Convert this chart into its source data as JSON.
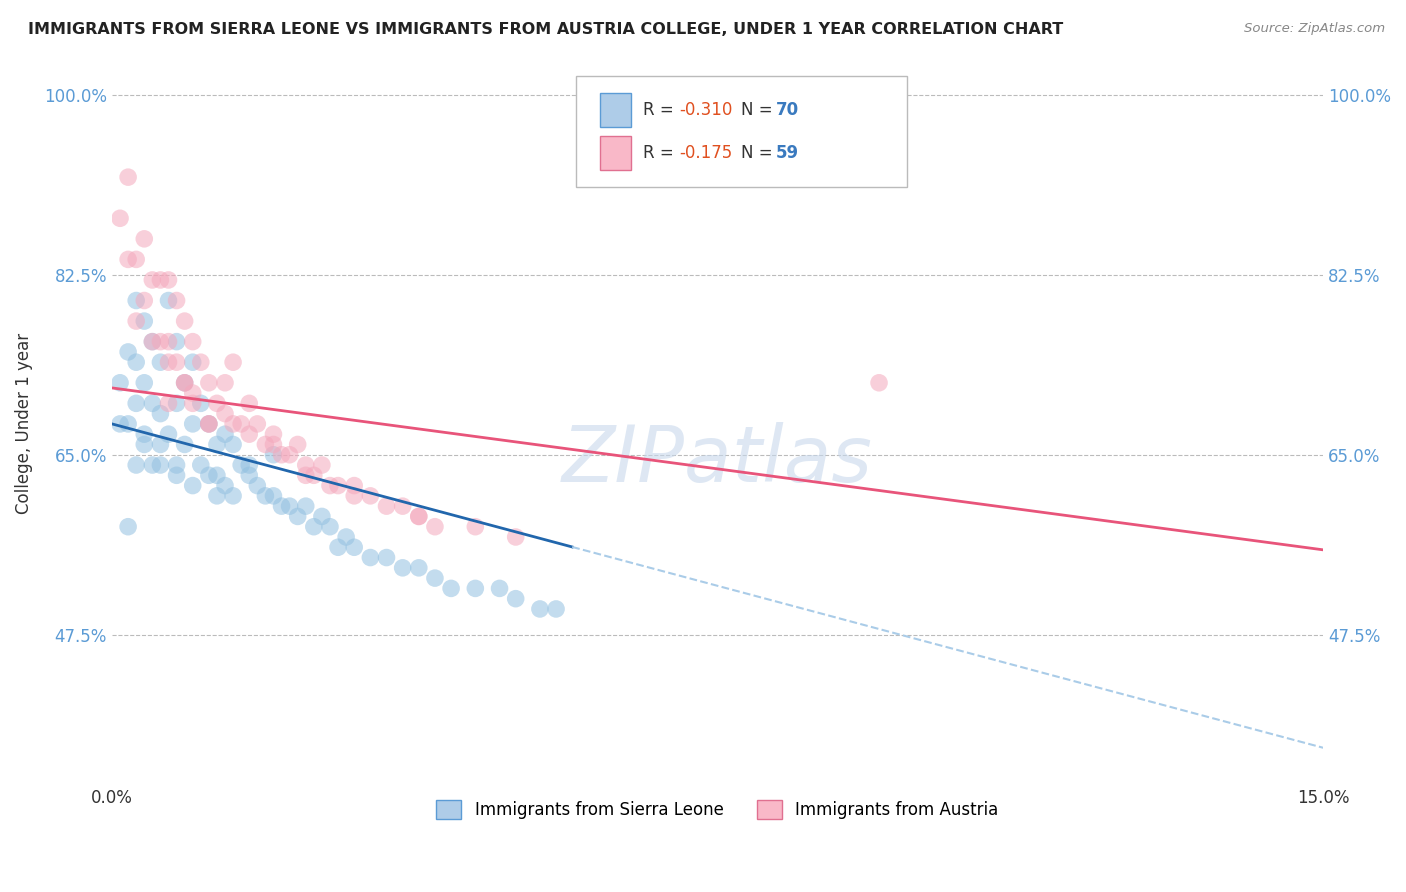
{
  "title": "IMMIGRANTS FROM SIERRA LEONE VS IMMIGRANTS FROM AUSTRIA COLLEGE, UNDER 1 YEAR CORRELATION CHART",
  "source": "Source: ZipAtlas.com",
  "ylabel": "College, Under 1 year",
  "xlim": [
    0.0,
    0.15
  ],
  "ylim": [
    0.33,
    1.03
  ],
  "xticks": [
    0.0,
    0.15
  ],
  "xtick_labels": [
    "0.0%",
    "15.0%"
  ],
  "yticks": [
    0.475,
    0.65,
    0.825,
    1.0
  ],
  "ytick_labels": [
    "47.5%",
    "65.0%",
    "82.5%",
    "100.0%"
  ],
  "series1_label": "Immigrants from Sierra Leone",
  "series1_color": "#92c0e0",
  "series2_label": "Immigrants from Austria",
  "series2_color": "#f4a8bc",
  "watermark": "ZIPatlas",
  "background_color": "#ffffff",
  "scatter_alpha": 0.55,
  "scatter_size": 160,
  "grid_color": "#bbbbbb",
  "line1_color": "#2166ac",
  "line2_color": "#e8547a",
  "line1_dash_color": "#aacce8",
  "line1_x0": 0.0,
  "line1_y0": 0.68,
  "line1_slope": -2.1,
  "line1_solid_end": 0.057,
  "line2_x0": 0.0,
  "line2_y0": 0.715,
  "line2_slope": -1.05,
  "line2_solid_end": 0.15,
  "series1_x": [
    0.001,
    0.001,
    0.002,
    0.002,
    0.003,
    0.003,
    0.003,
    0.003,
    0.004,
    0.004,
    0.004,
    0.005,
    0.005,
    0.005,
    0.006,
    0.006,
    0.006,
    0.007,
    0.007,
    0.008,
    0.008,
    0.008,
    0.009,
    0.009,
    0.01,
    0.01,
    0.01,
    0.011,
    0.011,
    0.012,
    0.012,
    0.013,
    0.013,
    0.014,
    0.014,
    0.015,
    0.015,
    0.016,
    0.017,
    0.018,
    0.019,
    0.02,
    0.021,
    0.022,
    0.023,
    0.024,
    0.025,
    0.026,
    0.027,
    0.028,
    0.029,
    0.03,
    0.032,
    0.034,
    0.036,
    0.038,
    0.04,
    0.042,
    0.045,
    0.048,
    0.05,
    0.053,
    0.055,
    0.02,
    0.017,
    0.013,
    0.008,
    0.006,
    0.004,
    0.002
  ],
  "series1_y": [
    0.72,
    0.68,
    0.75,
    0.68,
    0.8,
    0.74,
    0.7,
    0.64,
    0.78,
    0.72,
    0.66,
    0.76,
    0.7,
    0.64,
    0.74,
    0.69,
    0.64,
    0.8,
    0.67,
    0.76,
    0.7,
    0.64,
    0.72,
    0.66,
    0.74,
    0.68,
    0.62,
    0.7,
    0.64,
    0.68,
    0.63,
    0.66,
    0.61,
    0.67,
    0.62,
    0.66,
    0.61,
    0.64,
    0.63,
    0.62,
    0.61,
    0.61,
    0.6,
    0.6,
    0.59,
    0.6,
    0.58,
    0.59,
    0.58,
    0.56,
    0.57,
    0.56,
    0.55,
    0.55,
    0.54,
    0.54,
    0.53,
    0.52,
    0.52,
    0.52,
    0.51,
    0.5,
    0.5,
    0.65,
    0.64,
    0.63,
    0.63,
    0.66,
    0.67,
    0.58
  ],
  "series2_x": [
    0.001,
    0.002,
    0.002,
    0.003,
    0.003,
    0.004,
    0.004,
    0.005,
    0.005,
    0.006,
    0.006,
    0.007,
    0.007,
    0.008,
    0.008,
    0.009,
    0.009,
    0.01,
    0.01,
    0.011,
    0.012,
    0.012,
    0.013,
    0.014,
    0.015,
    0.015,
    0.016,
    0.017,
    0.018,
    0.019,
    0.02,
    0.021,
    0.022,
    0.023,
    0.024,
    0.025,
    0.026,
    0.027,
    0.028,
    0.03,
    0.032,
    0.034,
    0.036,
    0.038,
    0.04,
    0.045,
    0.05,
    0.007,
    0.009,
    0.012,
    0.007,
    0.095,
    0.01,
    0.014,
    0.017,
    0.02,
    0.024,
    0.03,
    0.038
  ],
  "series2_y": [
    0.88,
    0.92,
    0.84,
    0.84,
    0.78,
    0.86,
    0.8,
    0.82,
    0.76,
    0.82,
    0.76,
    0.82,
    0.76,
    0.8,
    0.74,
    0.78,
    0.72,
    0.76,
    0.7,
    0.74,
    0.72,
    0.68,
    0.7,
    0.72,
    0.74,
    0.68,
    0.68,
    0.7,
    0.68,
    0.66,
    0.67,
    0.65,
    0.65,
    0.66,
    0.64,
    0.63,
    0.64,
    0.62,
    0.62,
    0.62,
    0.61,
    0.6,
    0.6,
    0.59,
    0.58,
    0.58,
    0.57,
    0.74,
    0.72,
    0.68,
    0.7,
    0.72,
    0.71,
    0.69,
    0.67,
    0.66,
    0.63,
    0.61,
    0.59
  ]
}
